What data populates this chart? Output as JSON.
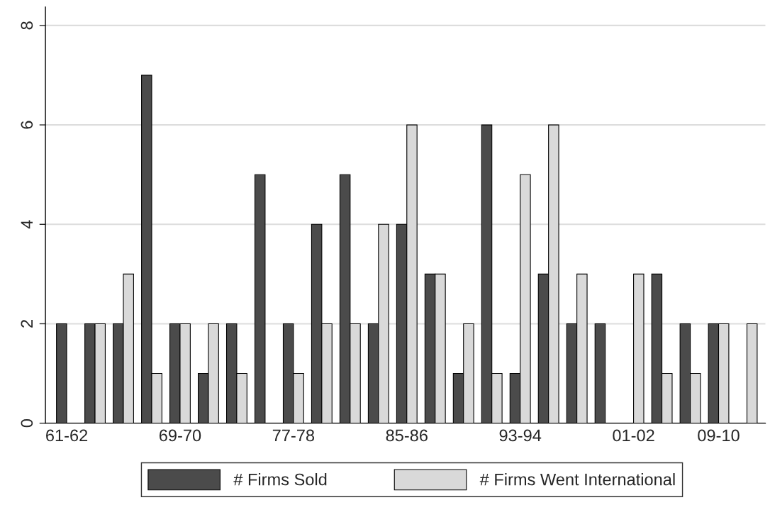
{
  "chart_data": {
    "type": "bar",
    "categories": [
      "61-62",
      null,
      null,
      null,
      "69-70",
      null,
      null,
      null,
      "77-78",
      null,
      null,
      null,
      "85-86",
      null,
      null,
      null,
      "93-94",
      null,
      null,
      null,
      "01-02",
      null,
      null,
      "09-10",
      null
    ],
    "series": [
      {
        "name": "# Firms Sold",
        "color": "#4b4b4b",
        "values": [
          2,
          2,
          2,
          7,
          2,
          1,
          2,
          5,
          2,
          4,
          5,
          2,
          4,
          3,
          1,
          6,
          1,
          3,
          2,
          2,
          null,
          3,
          2,
          2,
          null
        ]
      },
      {
        "name": "# Firms Went International",
        "color": "#d9d9d9",
        "values": [
          null,
          2,
          3,
          1,
          2,
          2,
          1,
          null,
          1,
          2,
          2,
          4,
          6,
          3,
          2,
          1,
          5,
          6,
          3,
          null,
          3,
          1,
          1,
          2,
          2
        ]
      }
    ],
    "ylim": [
      0,
      8.37
    ],
    "yticks": [
      0,
      2,
      4,
      6,
      8
    ],
    "grid": "y",
    "legend": "bottom"
  }
}
